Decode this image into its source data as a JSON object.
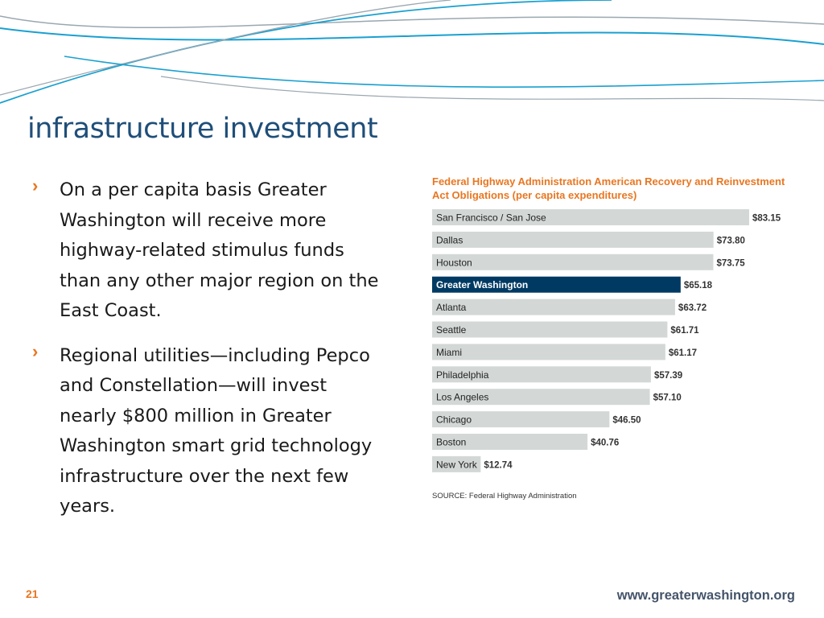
{
  "slide": {
    "title": "infrastructure investment",
    "bullets": [
      "On a per capita basis Greater Washington will receive more highway-related stimulus funds than any other major region on the East Coast.",
      "Regional utilities—including Pepco and Constellation—will invest nearly $800 million in Greater Washington smart grid technology infrastructure over the next few years."
    ],
    "bullet_marker": "›",
    "page_number": "21",
    "url": "www.greaterwashington.org"
  },
  "colors": {
    "title": "#1f4e79",
    "accent_orange": "#e87722",
    "bar_default": "#d3d8d6",
    "bar_highlight": "#003a63",
    "wave_blue": "#1aa0d0",
    "wave_gray": "#9aa7b0"
  },
  "chart_data": {
    "type": "bar",
    "orientation": "horizontal",
    "title": "Federal Highway Administration American Recovery and Reinvestment Act Obligations (per capita expenditures)",
    "categories": [
      "San Francisco / San Jose",
      "Dallas",
      "Houston",
      "Greater Washington",
      "Atlanta",
      "Seattle",
      "Miami",
      "Philadelphia",
      "Los Angeles",
      "Chicago",
      "Boston",
      "New York"
    ],
    "values": [
      83.15,
      73.8,
      73.75,
      65.18,
      63.72,
      61.71,
      61.17,
      57.39,
      57.1,
      46.5,
      40.76,
      12.74
    ],
    "value_labels": [
      "$83.15",
      "$73.80",
      "$73.75",
      "$65.18",
      "$63.72",
      "$61.71",
      "$61.17",
      "$57.39",
      "$57.10",
      "$46.50",
      "$40.76",
      "$12.74"
    ],
    "highlight": "Greater Washington",
    "xlim": [
      0,
      83.15
    ],
    "grid": false,
    "source": "SOURCE:  Federal Highway Administration"
  }
}
